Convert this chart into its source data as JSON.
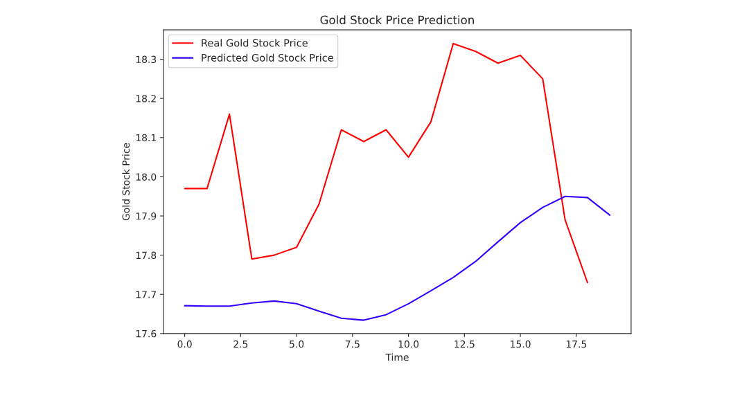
{
  "chart_data": {
    "type": "line",
    "title": "Gold Stock Price Prediction",
    "xlabel": "Time",
    "ylabel": "Gold Stock Price",
    "series": [
      {
        "name": "Real Gold Stock Price",
        "color": "#ff0000",
        "x": [
          0,
          1,
          2,
          3,
          4,
          5,
          6,
          7,
          8,
          9,
          10,
          11,
          12,
          13,
          14,
          15,
          16,
          17,
          18
        ],
        "values": [
          17.97,
          17.97,
          18.16,
          17.79,
          17.8,
          17.82,
          17.93,
          18.12,
          18.09,
          18.12,
          18.05,
          18.14,
          18.34,
          18.32,
          18.29,
          18.31,
          18.25,
          17.89,
          17.73
        ]
      },
      {
        "name": "Predicted Gold Stock Price",
        "color": "#3300ff",
        "x": [
          0,
          1,
          2,
          3,
          4,
          5,
          6,
          7,
          8,
          9,
          10,
          11,
          12,
          13,
          14,
          15,
          16,
          17,
          18,
          19
        ],
        "values": [
          17.671,
          17.67,
          17.67,
          17.678,
          17.683,
          17.676,
          17.657,
          17.639,
          17.634,
          17.648,
          17.676,
          17.709,
          17.743,
          17.784,
          17.834,
          17.883,
          17.922,
          17.95,
          17.947,
          17.902
        ]
      }
    ],
    "xlim": [
      -0.95,
      19.95
    ],
    "ylim": [
      17.6,
      18.375
    ],
    "xticks": [
      {
        "value": 0,
        "label": "0.0"
      },
      {
        "value": 2.5,
        "label": "2.5"
      },
      {
        "value": 5,
        "label": "5.0"
      },
      {
        "value": 7.5,
        "label": "7.5"
      },
      {
        "value": 10,
        "label": "10.0"
      },
      {
        "value": 12.5,
        "label": "12.5"
      },
      {
        "value": 15,
        "label": "15.0"
      },
      {
        "value": 17.5,
        "label": "17.5"
      }
    ],
    "yticks": [
      17.6,
      17.7,
      17.8,
      17.9,
      {
        "value": 18.0,
        "label": "18.0"
      },
      18.1,
      18.2,
      18.3
    ],
    "legend": "top left",
    "grid": false
  }
}
